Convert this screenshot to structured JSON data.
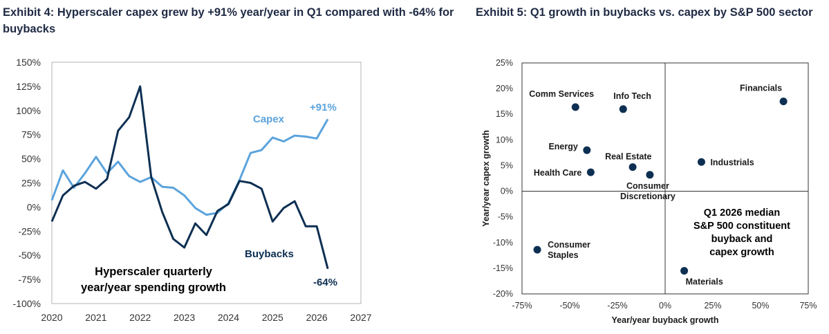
{
  "exhibit4": {
    "title": "Exhibit 4: Hyperscaler capex grew by +91% year/year in Q1 compared with -64% for buybacks",
    "annotation_lines": [
      "Hyperscaler quarterly",
      "year/year spending growth"
    ],
    "capex_end_label": "+91%",
    "buybacks_end_label": "-64%",
    "colors": {
      "capex": "#5ba3dc",
      "buybacks": "#0d2f52"
    },
    "chart_data": {
      "type": "line",
      "xlim": [
        2020,
        2027
      ],
      "ylim": [
        -100,
        150
      ],
      "x_ticks": [
        2020,
        2021,
        2022,
        2023,
        2024,
        2025,
        2026,
        2027
      ],
      "y_ticks": [
        -100,
        -75,
        -50,
        -25,
        0,
        25,
        50,
        75,
        100,
        125,
        150
      ],
      "y_tick_labels": [
        "-100%",
        "-75%",
        "-50%",
        "-25%",
        "0%",
        "25%",
        "50%",
        "75%",
        "100%",
        "125%",
        "150%"
      ],
      "grid": false,
      "series": [
        {
          "name": "Capex",
          "x": [
            2020.0,
            2020.25,
            2020.5,
            2020.75,
            2021.0,
            2021.25,
            2021.5,
            2021.75,
            2022.0,
            2022.25,
            2022.5,
            2022.75,
            2023.0,
            2023.25,
            2023.5,
            2023.75,
            2024.0,
            2024.25,
            2024.5,
            2024.75,
            2025.0,
            2025.25,
            2025.5,
            2025.75,
            2026.0,
            2026.25
          ],
          "values": [
            7,
            38,
            20,
            35,
            52,
            35,
            47,
            32,
            26,
            31,
            21,
            20,
            12,
            -1,
            -8,
            -6,
            4,
            28,
            56,
            59,
            72,
            68,
            74,
            73,
            71,
            91
          ]
        },
        {
          "name": "Buybacks",
          "x": [
            2020.0,
            2020.25,
            2020.5,
            2020.75,
            2021.0,
            2021.25,
            2021.5,
            2021.75,
            2022.0,
            2022.25,
            2022.5,
            2022.75,
            2023.0,
            2023.25,
            2023.5,
            2023.75,
            2024.0,
            2024.25,
            2024.5,
            2024.75,
            2025.0,
            2025.25,
            2025.5,
            2025.75,
            2026.0,
            2026.25
          ],
          "values": [
            -15,
            12,
            22,
            26,
            19,
            29,
            79,
            93,
            125,
            31,
            -5,
            -33,
            -42,
            -17,
            -29,
            -4,
            3,
            27,
            25,
            19,
            -15,
            -1,
            6,
            -20,
            -20,
            -64
          ]
        }
      ]
    }
  },
  "exhibit5": {
    "title": "Exhibit 5: Q1 growth in buybacks vs. capex by S&P 500 sector",
    "xlabel": "Year/year buyback growth",
    "ylabel": "Year/year capex growth",
    "annotation_lines": [
      "Q1 2026 median",
      "S&P 500 constituent",
      "buyback and",
      "capex growth"
    ],
    "colors": {
      "points": "#0d2f52"
    },
    "chart_data": {
      "type": "scatter",
      "xlim": [
        -75,
        75
      ],
      "ylim": [
        -20,
        25
      ],
      "x_ticks": [
        -75,
        -50,
        -25,
        0,
        25,
        50,
        75
      ],
      "x_tick_labels": [
        "-75%",
        "-50%",
        "-25%",
        "0%",
        "25%",
        "50%",
        "75%"
      ],
      "y_ticks": [
        -20,
        -15,
        -10,
        -5,
        0,
        5,
        10,
        15,
        20,
        25
      ],
      "y_tick_labels": [
        "-20%",
        "-15%",
        "-10%",
        "-5%",
        "0%",
        "5%",
        "10%",
        "15%",
        "20%",
        "25%"
      ],
      "grid": false,
      "points": [
        {
          "label": "Financials",
          "x": 62,
          "y": 17.5
        },
        {
          "label": "Comm Services",
          "x": -47,
          "y": 16.4
        },
        {
          "label": "Info Tech",
          "x": -22,
          "y": 16.0
        },
        {
          "label": "Energy",
          "x": -41,
          "y": 8.0
        },
        {
          "label": "Real Estate",
          "x": -17,
          "y": 4.7
        },
        {
          "label": "Industrials",
          "x": 19,
          "y": 5.7
        },
        {
          "label": "Health Care",
          "x": -39,
          "y": 3.7
        },
        {
          "label": "Consumer Discretionary",
          "x": -8,
          "y": 3.2
        },
        {
          "label": "Consumer Staples",
          "x": -67,
          "y": -11.4
        },
        {
          "label": "Materials",
          "x": 10,
          "y": -15.5
        }
      ]
    }
  }
}
